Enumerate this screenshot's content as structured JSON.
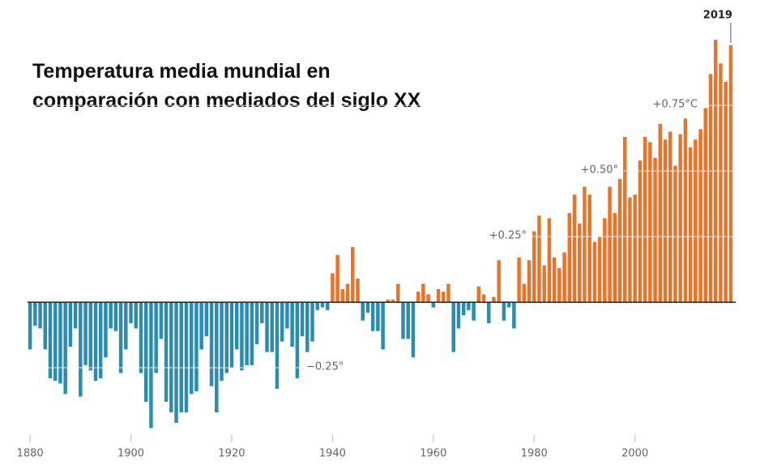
{
  "chart_data": {
    "type": "bar",
    "title": [
      "Temperatura media mundial en",
      "comparación con mediados del siglo XX"
    ],
    "x": [
      1880,
      1881,
      1882,
      1883,
      1884,
      1885,
      1886,
      1887,
      1888,
      1889,
      1890,
      1891,
      1892,
      1893,
      1894,
      1895,
      1896,
      1897,
      1898,
      1899,
      1900,
      1901,
      1902,
      1903,
      1904,
      1905,
      1906,
      1907,
      1908,
      1909,
      1910,
      1911,
      1912,
      1913,
      1914,
      1915,
      1916,
      1917,
      1918,
      1919,
      1920,
      1921,
      1922,
      1923,
      1924,
      1925,
      1926,
      1927,
      1928,
      1929,
      1930,
      1931,
      1932,
      1933,
      1934,
      1935,
      1936,
      1937,
      1938,
      1939,
      1940,
      1941,
      1942,
      1943,
      1944,
      1945,
      1946,
      1947,
      1948,
      1949,
      1950,
      1951,
      1952,
      1953,
      1954,
      1955,
      1956,
      1957,
      1958,
      1959,
      1960,
      1961,
      1962,
      1963,
      1964,
      1965,
      1966,
      1967,
      1968,
      1969,
      1970,
      1971,
      1972,
      1973,
      1974,
      1975,
      1976,
      1977,
      1978,
      1979,
      1980,
      1981,
      1982,
      1983,
      1984,
      1985,
      1986,
      1987,
      1988,
      1989,
      1990,
      1991,
      1992,
      1993,
      1994,
      1995,
      1996,
      1997,
      1998,
      1999,
      2000,
      2001,
      2002,
      2003,
      2004,
      2005,
      2006,
      2007,
      2008,
      2009,
      2010,
      2011,
      2012,
      2013,
      2014,
      2015,
      2016,
      2017,
      2018,
      2019
    ],
    "values": [
      -0.18,
      -0.09,
      -0.1,
      -0.18,
      -0.29,
      -0.3,
      -0.31,
      -0.35,
      -0.17,
      -0.1,
      -0.36,
      -0.24,
      -0.26,
      -0.3,
      -0.29,
      -0.21,
      -0.1,
      -0.11,
      -0.27,
      -0.18,
      -0.08,
      -0.1,
      -0.27,
      -0.38,
      -0.48,
      -0.27,
      -0.14,
      -0.38,
      -0.42,
      -0.46,
      -0.42,
      -0.42,
      -0.35,
      -0.34,
      -0.18,
      -0.13,
      -0.32,
      -0.42,
      -0.3,
      -0.27,
      -0.25,
      -0.18,
      -0.26,
      -0.24,
      -0.24,
      -0.16,
      -0.08,
      -0.19,
      -0.19,
      -0.33,
      -0.15,
      -0.1,
      -0.17,
      -0.29,
      -0.13,
      -0.19,
      -0.15,
      -0.03,
      -0.02,
      -0.03,
      0.11,
      0.18,
      0.05,
      0.07,
      0.21,
      0.09,
      -0.07,
      -0.04,
      -0.11,
      -0.11,
      -0.18,
      0.01,
      0.01,
      0.07,
      -0.14,
      -0.14,
      -0.21,
      0.04,
      0.07,
      0.03,
      -0.02,
      0.05,
      0.04,
      0.07,
      -0.19,
      -0.1,
      -0.05,
      -0.03,
      -0.07,
      0.06,
      0.03,
      -0.08,
      0.02,
      0.16,
      -0.07,
      -0.02,
      -0.1,
      0.17,
      0.07,
      0.16,
      0.27,
      0.33,
      0.14,
      0.32,
      0.17,
      0.13,
      0.19,
      0.34,
      0.41,
      0.3,
      0.44,
      0.41,
      0.23,
      0.25,
      0.32,
      0.44,
      0.34,
      0.47,
      0.63,
      0.4,
      0.41,
      0.54,
      0.63,
      0.61,
      0.55,
      0.68,
      0.62,
      0.65,
      0.52,
      0.64,
      0.7,
      0.59,
      0.62,
      0.66,
      0.74,
      0.87,
      1.0,
      0.91,
      0.84,
      0.98
    ],
    "positive_color": "#e8742a",
    "negative_color": "#2b8cb0",
    "xlim": [
      1879.5,
      2019.5
    ],
    "xticks": [
      1880,
      1900,
      1920,
      1940,
      1960,
      1980,
      2000
    ],
    "ylim": [
      -0.5,
      1.05
    ],
    "yticks": [
      {
        "value": -0.25,
        "label": "−0.25°"
      },
      {
        "value": 0.25,
        "label": "+0.25°"
      },
      {
        "value": 0.5,
        "label": "+0.50°"
      },
      {
        "value": 0.75,
        "label": "+0.75°C"
      }
    ],
    "grid": true
  }
}
